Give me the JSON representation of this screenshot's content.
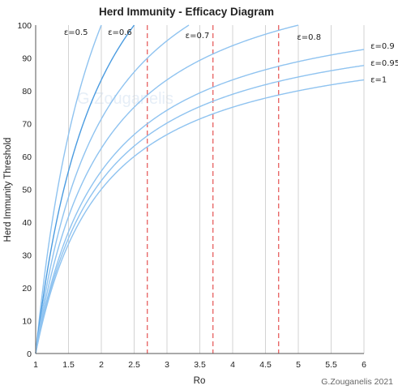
{
  "chart_data": {
    "type": "line",
    "title": "Herd Immunity - Efficacy Diagram",
    "xlabel": "Ro",
    "ylabel": "Herd Immunity Threshold",
    "xlim": [
      1,
      6
    ],
    "ylim": [
      0,
      100
    ],
    "x_ticks": [
      "1",
      "1.5",
      "2",
      "2.5",
      "3",
      "3.5",
      "4",
      "4.5",
      "5",
      "5.5",
      "6"
    ],
    "y_ticks": [
      "0",
      "10",
      "20",
      "30",
      "40",
      "50",
      "60",
      "70",
      "80",
      "90",
      "100"
    ],
    "grid": "vertical",
    "formula": "threshold = (1 - 1/Ro) / ε × 100",
    "series": [
      {
        "name": "ε=0.5",
        "efficacy": 0.5,
        "x": [
          1,
          1.1,
          1.2,
          1.3,
          1.4,
          1.5,
          1.6,
          1.65
        ],
        "y": [
          0,
          18.2,
          33.3,
          46.2,
          57.1,
          66.7,
          75.0,
          78.8
        ]
      },
      {
        "name": "ε=0.6",
        "efficacy": 0.6,
        "x": [
          1,
          1.25,
          1.5,
          1.75,
          2,
          2.25,
          2.5
        ],
        "y": [
          0,
          33.3,
          55.6,
          71.4,
          83.3,
          92.6,
          100
        ]
      },
      {
        "name": "ε=0.7",
        "efficacy": 0.7,
        "x": [
          1,
          1.5,
          2,
          2.5,
          3,
          3.33
        ],
        "y": [
          0,
          47.6,
          71.4,
          85.7,
          95.2,
          100
        ]
      },
      {
        "name": "ε=0.8",
        "efficacy": 0.8,
        "x": [
          1,
          1.5,
          2,
          2.5,
          3,
          3.5,
          4,
          4.5,
          5
        ],
        "y": [
          0,
          41.7,
          62.5,
          75.0,
          83.3,
          89.3,
          93.8,
          97.2,
          100
        ]
      },
      {
        "name": "ε=0.9",
        "efficacy": 0.9,
        "x": [
          1,
          2,
          3,
          4,
          5,
          6
        ],
        "y": [
          0,
          55.6,
          74.1,
          83.3,
          88.9,
          92.6
        ]
      },
      {
        "name": "ε=0.95",
        "efficacy": 0.95,
        "x": [
          1,
          2,
          3,
          4,
          5,
          6
        ],
        "y": [
          0,
          52.6,
          70.2,
          78.9,
          84.2,
          87.7
        ]
      },
      {
        "name": "ε=1",
        "efficacy": 1.0,
        "x": [
          1,
          2,
          3,
          4,
          5,
          6
        ],
        "y": [
          0,
          50.0,
          66.7,
          75.0,
          80.0,
          83.3
        ]
      }
    ],
    "reference_lines": [
      2.7,
      3.7,
      4.7
    ],
    "colors": {
      "series": "#8fc3f0",
      "series_dark": "#4a9be0",
      "reference": "#e86a6a",
      "grid": "#d3d3d3"
    },
    "credit": "G.Zouganelis 2021",
    "watermark": "G.Zouganelis"
  }
}
